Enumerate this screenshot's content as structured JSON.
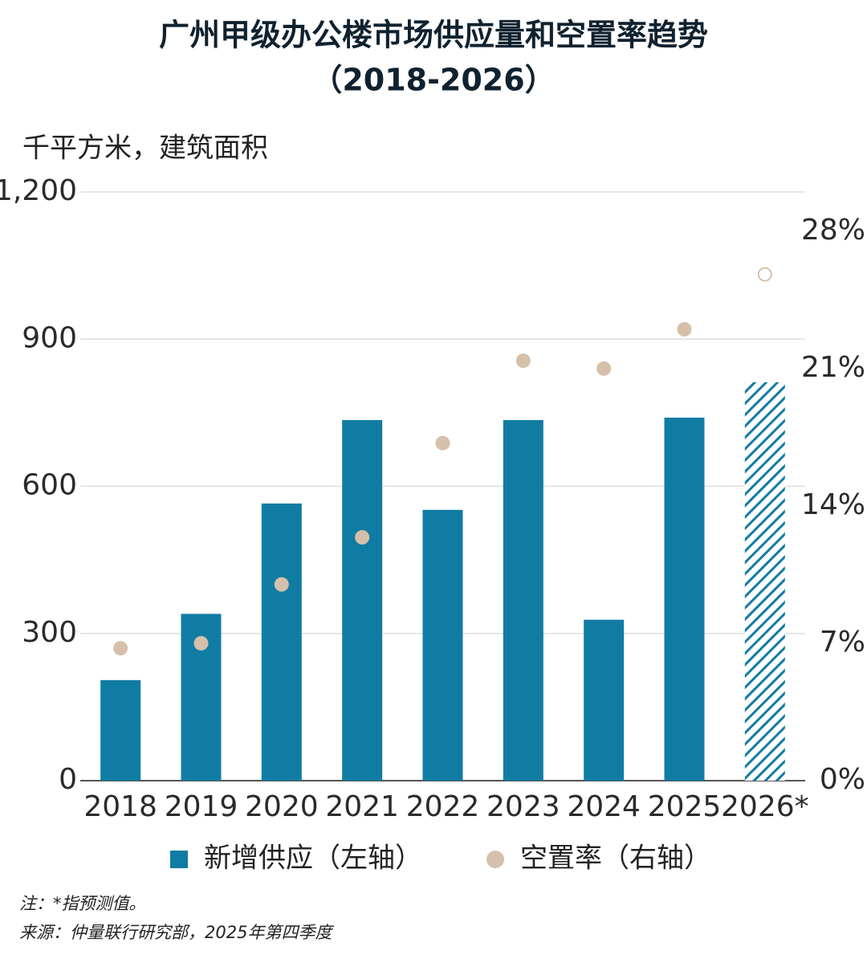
{
  "chart_data": {
    "type": "bar_dot",
    "title": "广州甲级办公楼市场供应量和空置率趋势",
    "subtitle": "（2018-2026）",
    "y_label": "千平方米，建筑面积",
    "categories": [
      "2018",
      "2019",
      "2020",
      "2021",
      "2022",
      "2023",
      "2024",
      "2025",
      "2026*"
    ],
    "series": [
      {
        "name": "新增供应（左轴）",
        "color": "#117ca3",
        "values": [
          205,
          340,
          565,
          735,
          552,
          735,
          328,
          740,
          812
        ],
        "styles": [
          "solid",
          "solid",
          "solid",
          "solid",
          "solid",
          "solid",
          "solid",
          "solid",
          "hatched"
        ]
      },
      {
        "name": "空置率（右轴）",
        "color": "#d6c0ac",
        "axis": "y2",
        "values": [
          6.75,
          7.0,
          10.0,
          12.4,
          17.2,
          21.4,
          21.0,
          23.0,
          25.8
        ],
        "styles": [
          "filled",
          "filled",
          "filled",
          "filled",
          "filled",
          "filled",
          "filled",
          "filled",
          "hollow"
        ]
      }
    ],
    "ylim": [
      0,
      1200
    ],
    "yticks": [
      0,
      300,
      600,
      900,
      {
        "value": 1200,
        "label": "1,200"
      }
    ],
    "y2lim": [
      0,
      30
    ],
    "y2ticks": [
      {
        "value": 0,
        "label": "0%"
      },
      {
        "value": 7,
        "label": "7%"
      },
      {
        "value": 14,
        "label": "14%"
      },
      {
        "value": 21,
        "label": "21%"
      },
      {
        "value": 28,
        "label": "28%"
      }
    ],
    "grid": true,
    "legend": "bottom",
    "notes": [
      "注：*指预测值。",
      "来源：仲量联行研究部，2025年第四季度"
    ]
  }
}
